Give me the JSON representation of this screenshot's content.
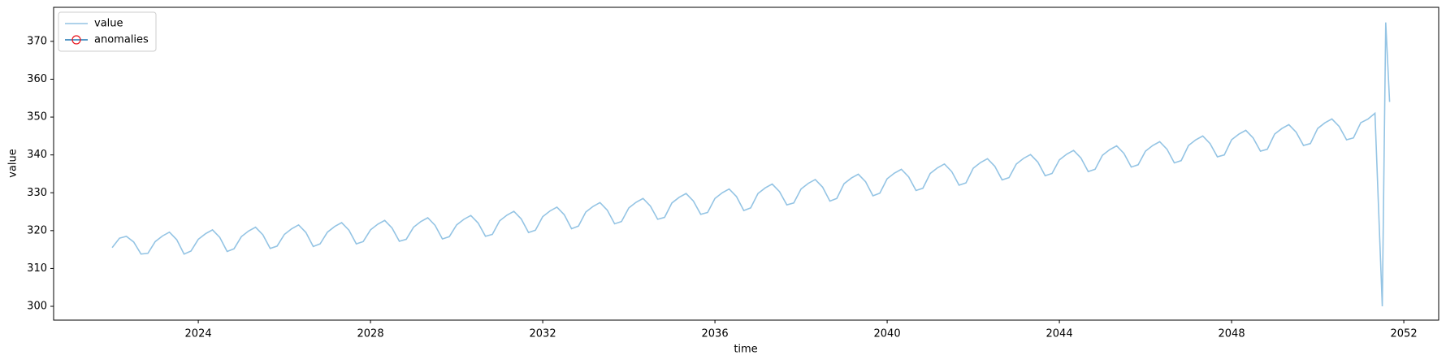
{
  "chart_data": {
    "type": "line",
    "xlabel": "time",
    "ylabel": "value",
    "xlim": [
      2020.64,
      2052.81
    ],
    "ylim": [
      296.35,
      379.0
    ],
    "xticks": [
      2024,
      2028,
      2032,
      2036,
      2040,
      2044,
      2048,
      2052
    ],
    "yticks": [
      300,
      310,
      320,
      330,
      340,
      350,
      360,
      370
    ],
    "grid": false,
    "legend": "upper left",
    "series": [
      {
        "name": "value",
        "color": "#94c4e4",
        "x": [
          2022,
          2022.17,
          2022.33,
          2022.5,
          2022.67,
          2022.83,
          2023,
          2023.17,
          2023.33,
          2023.5,
          2023.67,
          2023.83,
          2024,
          2024.17,
          2024.33,
          2024.5,
          2024.67,
          2024.83,
          2025,
          2025.17,
          2025.33,
          2025.5,
          2025.67,
          2025.83,
          2026,
          2026.17,
          2026.33,
          2026.5,
          2026.67,
          2026.83,
          2027,
          2027.17,
          2027.33,
          2027.5,
          2027.67,
          2027.83,
          2028,
          2028.17,
          2028.33,
          2028.5,
          2028.67,
          2028.83,
          2029,
          2029.17,
          2029.33,
          2029.5,
          2029.67,
          2029.83,
          2030,
          2030.17,
          2030.33,
          2030.5,
          2030.67,
          2030.83,
          2031,
          2031.17,
          2031.33,
          2031.5,
          2031.67,
          2031.83,
          2032,
          2032.17,
          2032.33,
          2032.5,
          2032.67,
          2032.83,
          2033,
          2033.17,
          2033.33,
          2033.5,
          2033.67,
          2033.83,
          2034,
          2034.17,
          2034.33,
          2034.5,
          2034.67,
          2034.83,
          2035,
          2035.17,
          2035.33,
          2035.5,
          2035.67,
          2035.83,
          2036,
          2036.17,
          2036.33,
          2036.5,
          2036.67,
          2036.83,
          2037,
          2037.17,
          2037.33,
          2037.5,
          2037.67,
          2037.83,
          2038,
          2038.17,
          2038.33,
          2038.5,
          2038.67,
          2038.83,
          2039,
          2039.17,
          2039.33,
          2039.5,
          2039.67,
          2039.83,
          2040,
          2040.17,
          2040.33,
          2040.5,
          2040.67,
          2040.83,
          2041,
          2041.17,
          2041.33,
          2041.5,
          2041.67,
          2041.83,
          2042,
          2042.17,
          2042.33,
          2042.5,
          2042.67,
          2042.83,
          2043,
          2043.17,
          2043.33,
          2043.5,
          2043.67,
          2043.83,
          2044,
          2044.17,
          2044.33,
          2044.5,
          2044.67,
          2044.83,
          2045,
          2045.17,
          2045.33,
          2045.5,
          2045.67,
          2045.83,
          2046,
          2046.17,
          2046.33,
          2046.5,
          2046.67,
          2046.83,
          2047,
          2047.17,
          2047.33,
          2047.5,
          2047.67,
          2047.83,
          2048,
          2048.17,
          2048.33,
          2048.5,
          2048.67,
          2048.83,
          2049,
          2049.17,
          2049.33,
          2049.5,
          2049.67,
          2049.83,
          2050,
          2050.17,
          2050.33,
          2050.5,
          2050.67,
          2050.83,
          2051,
          2051.17,
          2051.33,
          2051.5,
          2051.58,
          2051.67
        ],
        "values": [
          315.5,
          318.0,
          318.5,
          317.0,
          313.8,
          314.0,
          317.1,
          318.6,
          319.6,
          317.6,
          313.8,
          314.6,
          317.7,
          319.2,
          320.2,
          318.2,
          314.5,
          315.2,
          318.4,
          319.9,
          320.9,
          318.9,
          315.3,
          315.9,
          319.0,
          320.5,
          321.5,
          319.5,
          315.8,
          316.5,
          319.6,
          321.1,
          322.1,
          320.1,
          316.5,
          317.1,
          320.2,
          321.7,
          322.7,
          320.7,
          317.2,
          317.7,
          320.9,
          322.4,
          323.4,
          321.4,
          317.8,
          318.4,
          321.5,
          323.0,
          324.0,
          322.0,
          318.5,
          319.0,
          322.6,
          324.1,
          325.1,
          323.1,
          319.5,
          320.1,
          323.7,
          325.2,
          326.2,
          324.2,
          320.5,
          321.2,
          324.9,
          326.4,
          327.4,
          325.4,
          321.8,
          322.4,
          326.0,
          327.5,
          328.5,
          326.5,
          323.0,
          323.5,
          327.3,
          328.8,
          329.8,
          327.8,
          324.3,
          324.8,
          328.5,
          330.0,
          331.0,
          329.0,
          325.3,
          326.0,
          329.8,
          331.3,
          332.3,
          330.3,
          326.8,
          327.3,
          331.0,
          332.5,
          333.5,
          331.5,
          327.8,
          328.5,
          332.4,
          333.9,
          334.9,
          332.9,
          329.2,
          329.9,
          333.7,
          335.2,
          336.2,
          334.2,
          330.6,
          331.2,
          335.1,
          336.6,
          337.6,
          335.6,
          332.0,
          332.6,
          336.5,
          338.0,
          339.0,
          337.0,
          333.4,
          334.0,
          337.6,
          339.1,
          340.1,
          338.1,
          334.5,
          335.1,
          338.7,
          340.2,
          341.2,
          339.2,
          335.6,
          336.2,
          339.9,
          341.4,
          342.4,
          340.4,
          336.8,
          337.4,
          341.0,
          342.5,
          343.5,
          341.5,
          337.9,
          338.5,
          342.5,
          344.0,
          345.0,
          343.0,
          339.5,
          340.0,
          344.0,
          345.5,
          346.5,
          344.5,
          341.0,
          341.5,
          345.5,
          347.0,
          348.0,
          346.0,
          342.5,
          343.0,
          347.0,
          348.5,
          349.5,
          347.5,
          344.0,
          344.5,
          348.5,
          349.5,
          351.0,
          300.0,
          375.0,
          354.0
        ]
      },
      {
        "name": "anomalies",
        "color": "#1f77b4",
        "marker_edge_color": "#e8141c",
        "x": [],
        "values": []
      }
    ]
  }
}
